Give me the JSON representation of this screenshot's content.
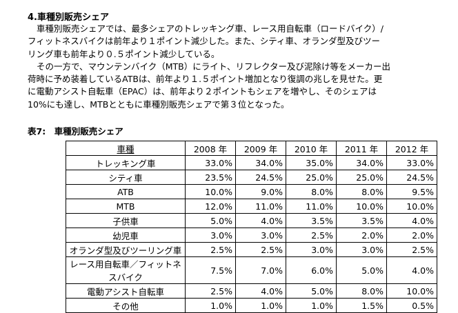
{
  "section": {
    "heading": "4.車種別販売シェア",
    "paragraphs": [
      [
        "車種別販売シェアでは、最多シェアのトレッキング車、レース用自転車（ロードバイク）/",
        "フィットネスバイクは前年より１ポイント減少した。また、シティ車、オランダ型及びツー",
        "リング車も前年より０.５ポイント減少している。"
      ],
      [
        "その一方で、マウンテンバイク（MTB）にライト、リフレクター及び泥除け等をメーカー出",
        "荷時に予め装着しているATBは、前年より１.５ポイント増加となり復調の兆しを見せた。更",
        "に電動アシスト自転車（EPAC）は、前年より２ポイントもシェアを増やし、そのシェアは",
        "10%にも達し、MTBとともに車種別販売シェアで第３位となった。"
      ]
    ]
  },
  "table": {
    "caption": "表7:　車種別販売シェア",
    "header": [
      "車種",
      "2008 年",
      "2009 年",
      "2010 年",
      "2011 年",
      "2012 年"
    ],
    "rows": [
      [
        "トレッキング車",
        "33.0%",
        "34.0%",
        "35.0%",
        "34.0%",
        "33.0%"
      ],
      [
        "シティ車",
        "23.5%",
        "24.5%",
        "25.0%",
        "25.0%",
        "24.5%"
      ],
      [
        "ATB",
        "10.0%",
        "9.0%",
        "8.0%",
        "8.0%",
        "9.5%"
      ],
      [
        "MTB",
        "12.0%",
        "11.0%",
        "11.0%",
        "10.0%",
        "10.0%"
      ],
      [
        "子供車",
        "5.0%",
        "4.0%",
        "3.5%",
        "3.5%",
        "4.0%"
      ],
      [
        "幼児車",
        "3.0%",
        "3.0%",
        "2.5%",
        "2.0%",
        "2.0%"
      ],
      [
        "オランダ型及びツーリング車",
        "2.5%",
        "2.5%",
        "3.0%",
        "3.0%",
        "2.5%"
      ],
      [
        "レース用自転車／フィットネスバイク",
        "7.5%",
        "7.0%",
        "6.0%",
        "5.0%",
        "4.0%"
      ],
      [
        "電動アシスト自転車",
        "2.5%",
        "4.0%",
        "5.0%",
        "8.0%",
        "10.0%"
      ],
      [
        "その他",
        "1.0%",
        "1.0%",
        "1.0%",
        "1.5%",
        "0.5%"
      ]
    ]
  }
}
